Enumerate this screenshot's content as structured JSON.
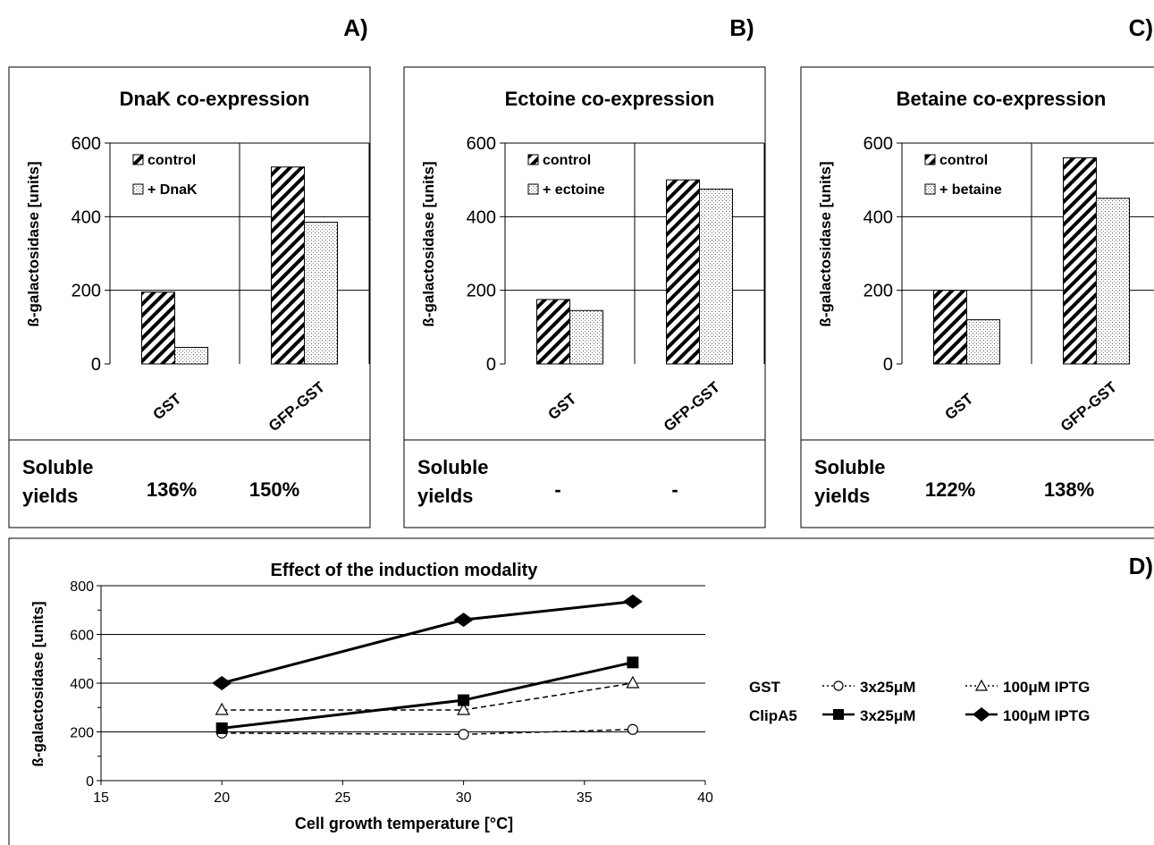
{
  "panels": [
    {
      "letter": "A)",
      "title": "DnaK co-expression",
      "ylabel": "ß-galactosidase [units]",
      "yticks": [
        "0",
        "200",
        "400",
        "600"
      ],
      "categories": [
        "GST",
        "GFP-GST"
      ],
      "legend": [
        "control",
        "+ DnaK"
      ],
      "yields_label": [
        "Soluble",
        "yields"
      ],
      "yields": [
        "136%",
        "150%"
      ]
    },
    {
      "letter": "B)",
      "title": "Ectoine co-expression",
      "ylabel": "ß-galactosidase [units]",
      "yticks": [
        "0",
        "200",
        "400",
        "600"
      ],
      "categories": [
        "GST",
        "GFP-GST"
      ],
      "legend": [
        "control",
        "+ ectoine"
      ],
      "yields_label": [
        "Soluble",
        "yields"
      ],
      "yields": [
        "-",
        "-"
      ]
    },
    {
      "letter": "C)",
      "title": "Betaine co-expression",
      "ylabel": "ß-galactosidase [units]",
      "yticks": [
        "0",
        "200",
        "400",
        "600"
      ],
      "categories": [
        "GST",
        "GFP-GST"
      ],
      "legend": [
        "control",
        "+ betaine"
      ],
      "yields_label": [
        "Soluble",
        "yields"
      ],
      "yields": [
        "122%",
        "138%"
      ]
    },
    {
      "letter": "D)",
      "title": "Effect of the induction modality",
      "ylabel": "ß-galactosidase [units]",
      "xlabel": "Cell growth temperature [°C]",
      "yticks": [
        "0",
        "200",
        "400",
        "600",
        "800"
      ],
      "xticks": [
        "15",
        "20",
        "25",
        "30",
        "35",
        "40"
      ],
      "legend": {
        "rows": [
          {
            "label": "GST",
            "items": [
              {
                "text": "3x25μM"
              },
              {
                "text": "100μM  IPTG"
              }
            ]
          },
          {
            "label": "ClipA5",
            "items": [
              {
                "text": "3x25μM"
              },
              {
                "text": "100μM  IPTG"
              }
            ]
          }
        ]
      }
    }
  ],
  "chart_data": [
    {
      "type": "bar",
      "title": "DnaK co-expression",
      "ylabel": "ß-galactosidase [units]",
      "categories": [
        "GST",
        "GFP-GST"
      ],
      "series": [
        {
          "name": "control",
          "values": [
            195,
            535
          ]
        },
        {
          "name": "+ DnaK",
          "values": [
            45,
            385
          ]
        }
      ],
      "ylim": [
        0,
        600
      ],
      "grid": true,
      "legend": "top-left"
    },
    {
      "type": "bar",
      "title": "Ectoine co-expression",
      "ylabel": "ß-galactosidase [units]",
      "categories": [
        "GST",
        "GFP-GST"
      ],
      "series": [
        {
          "name": "control",
          "values": [
            175,
            500
          ]
        },
        {
          "name": "+ ectoine",
          "values": [
            145,
            475
          ]
        }
      ],
      "ylim": [
        0,
        600
      ],
      "grid": true,
      "legend": "top-left"
    },
    {
      "type": "bar",
      "title": "Betaine co-expression",
      "ylabel": "ß-galactosidase [units]",
      "categories": [
        "GST",
        "GFP-GST"
      ],
      "series": [
        {
          "name": "control",
          "values": [
            200,
            560
          ]
        },
        {
          "name": "+ betaine",
          "values": [
            120,
            450
          ]
        }
      ],
      "ylim": [
        0,
        600
      ],
      "grid": true,
      "legend": "top-left"
    },
    {
      "type": "line",
      "title": "Effect of the induction modality",
      "xlabel": "Cell growth temperature [°C]",
      "ylabel": "ß-galactosidase [units]",
      "xlim": [
        15,
        40
      ],
      "ylim": [
        0,
        800
      ],
      "grid": true,
      "legend": "right",
      "series": [
        {
          "name": "GST 3x25μM",
          "marker": "circle-open",
          "line": "dashed",
          "x": [
            20,
            30,
            37
          ],
          "y": [
            195,
            190,
            210
          ]
        },
        {
          "name": "GST 100μM IPTG",
          "marker": "triangle-open",
          "line": "dashed",
          "x": [
            20,
            30,
            37
          ],
          "y": [
            290,
            290,
            400
          ]
        },
        {
          "name": "ClipA5 3x25μM",
          "marker": "square-filled",
          "line": "solid",
          "x": [
            20,
            30,
            37
          ],
          "y": [
            215,
            330,
            485
          ]
        },
        {
          "name": "ClipA5 100μM IPTG",
          "marker": "diamond-filled",
          "line": "solid",
          "x": [
            20,
            30,
            37
          ],
          "y": [
            400,
            660,
            735
          ]
        }
      ]
    }
  ]
}
